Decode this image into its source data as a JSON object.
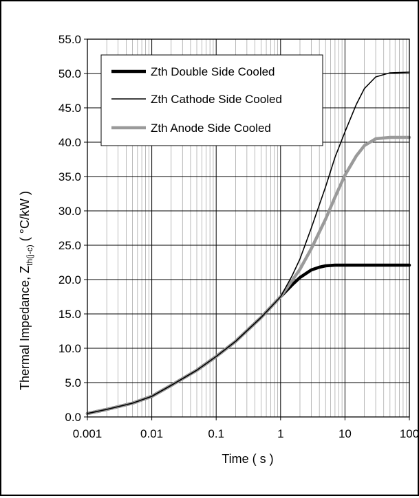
{
  "chart_data": {
    "type": "line",
    "title": "",
    "xlabel": "Time ( s )",
    "ylabel": {
      "main": "Thermal Impedance, Z",
      "subscript": "th(j-c)",
      "unit": " ( °C/kW )"
    },
    "x_scale": "log",
    "xlim": [
      0.001,
      100
    ],
    "ylim": [
      0,
      55
    ],
    "x_ticks": [
      "0.001",
      "0.01",
      "0.1",
      "1",
      "10",
      "100"
    ],
    "y_ticks": [
      "0.0",
      "5.0",
      "10.0",
      "15.0",
      "20.0",
      "25.0",
      "30.0",
      "35.0",
      "40.0",
      "45.0",
      "50.0",
      "55.0"
    ],
    "grid": "major and minor vertical, major horizontal",
    "legend_position": "top-left",
    "series": [
      {
        "name": "Zth Double Side Cooled",
        "color": "#000000",
        "style": "thick",
        "x": [
          0.001,
          0.002,
          0.005,
          0.01,
          0.02,
          0.05,
          0.1,
          0.2,
          0.5,
          1,
          1.5,
          2,
          3,
          4,
          5,
          7,
          10,
          20,
          50,
          100
        ],
        "y": [
          0.5,
          1.1,
          2.0,
          3.0,
          4.6,
          6.8,
          8.8,
          11.0,
          14.5,
          17.5,
          19.2,
          20.3,
          21.4,
          21.8,
          22.0,
          22.1,
          22.1,
          22.1,
          22.1,
          22.1
        ]
      },
      {
        "name": "Zth Cathode Side Cooled",
        "color": "#000000",
        "style": "thin",
        "x": [
          0.001,
          0.002,
          0.005,
          0.01,
          0.02,
          0.05,
          0.1,
          0.2,
          0.5,
          1,
          1.5,
          2,
          3,
          5,
          7,
          10,
          15,
          20,
          30,
          50,
          100
        ],
        "y": [
          0.5,
          1.1,
          2.0,
          3.0,
          4.6,
          6.8,
          8.8,
          11.0,
          14.5,
          17.5,
          20.5,
          23.0,
          27.5,
          33.5,
          37.8,
          41.5,
          45.5,
          47.8,
          49.5,
          50.1,
          50.2
        ]
      },
      {
        "name": "Zth Anode Side Cooled",
        "color": "#9a9a9a",
        "style": "thick",
        "x": [
          0.001,
          0.002,
          0.005,
          0.01,
          0.02,
          0.05,
          0.1,
          0.2,
          0.5,
          1,
          1.5,
          2,
          3,
          5,
          7,
          10,
          15,
          20,
          30,
          50,
          100
        ],
        "y": [
          0.5,
          1.1,
          2.0,
          3.0,
          4.6,
          6.8,
          8.8,
          11.0,
          14.5,
          17.5,
          19.8,
          21.5,
          24.5,
          28.8,
          32.0,
          35.2,
          38.0,
          39.5,
          40.5,
          40.7,
          40.7
        ]
      }
    ]
  }
}
